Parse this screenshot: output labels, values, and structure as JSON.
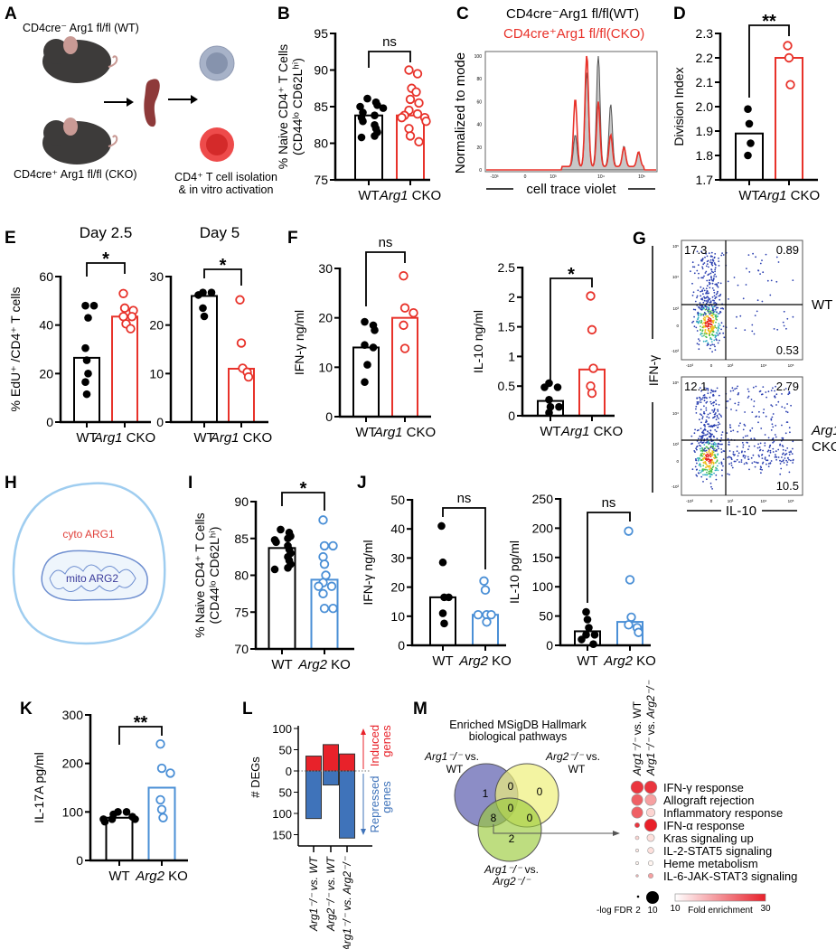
{
  "colors": {
    "wt": "#000000",
    "cko": "#e8322a",
    "ko2": "#4a8fd6",
    "gray": "#bdbdbd"
  },
  "panel_letters": [
    "A",
    "B",
    "C",
    "D",
    "E",
    "F",
    "G",
    "H",
    "I",
    "J",
    "K",
    "L",
    "M"
  ],
  "panel_a": {
    "wt_label": "CD4cre⁻ Arg1 fl/fl (WT)",
    "cko_label": "CD4cre⁺ Arg1 fl/fl (CKO)",
    "step_line1": "CD4⁺ T cell isolation",
    "step_line2": "& in vitro activation",
    "icons": [
      "mouse-wt",
      "mouse-cko",
      "spleen",
      "naive-t-cell",
      "activated-t-cell"
    ]
  },
  "panel_h": {
    "cyto_label": "cyto ARG1",
    "mito_label": "mito ARG2"
  },
  "chart_data": [
    {
      "id": "B",
      "type": "bar",
      "ylabel": [
        "% Naive CD4⁺ T Cells",
        "(CD44ˡᵒ CD62Lʰⁱ)"
      ],
      "ylim": [
        75,
        95
      ],
      "yticks": [
        "75",
        "80",
        "85",
        "90",
        "95"
      ],
      "categories": [
        "WT",
        "Arg1 CKO"
      ],
      "significance": "ns",
      "series": [
        {
          "name": "WT",
          "bar": 83.8,
          "points": [
            86.1,
            85.6,
            85.2,
            85.0,
            84.8,
            84.2,
            83.8,
            83.5,
            83.0,
            82.5,
            82.0,
            81.5,
            81.0,
            80.8
          ],
          "filled": true,
          "color": "wt"
        },
        {
          "name": "Arg1 CKO",
          "bar": 83.8,
          "points": [
            90.0,
            89.5,
            87.5,
            87.0,
            86.0,
            85.5,
            84.5,
            84.0,
            83.8,
            83.5,
            83.5,
            83.0,
            82.0,
            81.0,
            80.2
          ],
          "filled": false,
          "color": "cko"
        }
      ]
    },
    {
      "id": "C",
      "type": "area",
      "title_wt": "CD4cre⁻Arg1 fl/fl(WT)",
      "title_cko": "CD4cre⁺Arg1 fl/fl(CKO)",
      "ylabel": "Normalized to mode",
      "xlabel": "cell trace violet",
      "yticks": [
        "0",
        "20",
        "40",
        "60",
        "80",
        "100"
      ],
      "xticks": [
        "-10³",
        "0",
        "10³",
        "10⁴",
        "10⁵"
      ],
      "series": [
        {
          "name": "WT",
          "peaks": [
            [
              3.5,
              28
            ],
            [
              3.76,
              83
            ],
            [
              4.02,
              100
            ],
            [
              4.3,
              55
            ],
            [
              4.6,
              18
            ],
            [
              4.93,
              12
            ]
          ]
        },
        {
          "name": "CKO",
          "peaks": [
            [
              3.5,
              60
            ],
            [
              3.76,
              100
            ],
            [
              4.02,
              57
            ],
            [
              4.3,
              28
            ],
            [
              4.6,
              17
            ],
            [
              4.93,
              13
            ]
          ]
        }
      ]
    },
    {
      "id": "D",
      "type": "bar",
      "ylabel": [
        "Division Index"
      ],
      "ylim": [
        1.7,
        2.3
      ],
      "yticks": [
        "1.7",
        "1.8",
        "1.9",
        "2.0",
        "2.1",
        "2.2",
        "2.3"
      ],
      "categories": [
        "WT",
        "Arg1 CKO"
      ],
      "significance": "**",
      "series": [
        {
          "name": "WT",
          "bar": 1.89,
          "points": [
            1.99,
            1.93,
            1.85,
            1.8
          ],
          "filled": true,
          "color": "wt"
        },
        {
          "name": "Arg1 CKO",
          "bar": 2.2,
          "points": [
            2.25,
            2.2,
            2.09
          ],
          "filled": false,
          "color": "cko"
        }
      ]
    },
    {
      "id": "E1",
      "type": "bar",
      "title": "Day 2.5",
      "ylabel": [
        "% EdU⁺ /CD4⁺ T cells"
      ],
      "ylim": [
        0,
        60
      ],
      "yticks": [
        "0",
        "20",
        "40",
        "60"
      ],
      "categories": [
        "WT",
        "Arg1 CKO"
      ],
      "significance": "*",
      "series": [
        {
          "name": "WT",
          "bar": 26.5,
          "points": [
            48,
            48,
            43,
            30.5,
            25.5,
            20,
            16.5,
            11.5
          ],
          "filled": true,
          "color": "wt"
        },
        {
          "name": "Arg1 CKO",
          "bar": 43.5,
          "points": [
            53,
            47,
            46,
            43.5,
            43.5,
            40.5,
            38.5
          ],
          "filled": false,
          "color": "cko"
        }
      ]
    },
    {
      "id": "E2",
      "type": "bar",
      "title": "Day 5",
      "ylabel": [],
      "ylim": [
        0,
        30
      ],
      "yticks": [
        "0",
        "10",
        "20",
        "30"
      ],
      "categories": [
        "WT",
        "Arg1 CKO"
      ],
      "significance": "*",
      "series": [
        {
          "name": "WT",
          "bar": 26,
          "points": [
            26.7,
            26.7,
            26.2,
            23.5,
            21.8
          ],
          "filled": true,
          "color": "wt"
        },
        {
          "name": "Arg1 CKO",
          "bar": 11,
          "points": [
            25.2,
            16.3,
            11.1,
            10.3,
            9.3
          ],
          "filled": false,
          "color": "cko"
        }
      ]
    },
    {
      "id": "F1",
      "type": "bar",
      "ylabel": [
        "IFN-γ ng/ml"
      ],
      "ylim": [
        0,
        30
      ],
      "yticks": [
        "0",
        "10",
        "20",
        "30"
      ],
      "categories": [
        "WT",
        "Arg1 CKO"
      ],
      "significance": "ns",
      "series": [
        {
          "name": "WT",
          "bar": 14,
          "points": [
            19.2,
            18.5,
            17.5,
            14.5,
            14.0,
            10.5,
            7.0
          ],
          "filled": true,
          "color": "wt"
        },
        {
          "name": "Arg1 CKO",
          "bar": 20,
          "points": [
            28.5,
            22,
            21,
            18.5,
            13.8
          ],
          "filled": false,
          "color": "cko"
        }
      ]
    },
    {
      "id": "F2",
      "type": "bar",
      "ylabel": [
        "IL-10 ng/ml"
      ],
      "ylim": [
        0,
        2.5
      ],
      "yticks": [
        "0",
        "0.5",
        "1",
        "1.5",
        "2",
        "2.5"
      ],
      "categories": [
        "WT",
        "Arg1 CKO"
      ],
      "significance": "*",
      "series": [
        {
          "name": "WT",
          "bar": 0.25,
          "points": [
            0.55,
            0.48,
            0.48,
            0.27,
            0.15,
            0.15,
            0.05
          ],
          "filled": true,
          "color": "wt"
        },
        {
          "name": "Arg1 CKO",
          "bar": 0.78,
          "points": [
            2.02,
            1.45,
            0.8,
            0.5,
            0.38
          ],
          "filled": false,
          "color": "cko"
        }
      ]
    },
    {
      "id": "G",
      "type": "scatter",
      "ylabel": "IFN-γ",
      "xlabel": "IL-10",
      "yticks": [
        "-10³",
        "0",
        "10³",
        "10⁴",
        "10⁵"
      ],
      "xticks": [
        "-10³",
        "0",
        "10³",
        "10⁴",
        "10⁵"
      ],
      "plots": [
        {
          "row_label": "WT",
          "quadrants": {
            "upper_left": "17.3",
            "upper_right": "0.89",
            "lower_right": "0.53"
          }
        },
        {
          "row_label": "Arg1 CKO",
          "quadrants": {
            "upper_left": "12.1",
            "upper_right": "2.79",
            "lower_right": "10.5"
          }
        }
      ]
    },
    {
      "id": "I",
      "type": "bar",
      "ylabel": [
        "% Naive CD4⁺ T Cells",
        "(CD44ˡᵒ CD62Lʰⁱ)"
      ],
      "ylim": [
        70,
        90
      ],
      "yticks": [
        "70",
        "75",
        "80",
        "85",
        "90"
      ],
      "categories": [
        "WT",
        "Arg2 KO"
      ],
      "significance": "*",
      "series": [
        {
          "name": "WT",
          "bar": 83.7,
          "points": [
            86.2,
            85.8,
            85.3,
            85.0,
            84.8,
            84.5,
            84.0,
            83.5,
            83.0,
            82.5,
            82.0,
            81.5,
            81.0,
            80.8
          ],
          "filled": true,
          "color": "wt"
        },
        {
          "name": "Arg2 KO",
          "bar": 79.4,
          "points": [
            87.5,
            84.0,
            84.0,
            82.5,
            81.5,
            80.0,
            79.0,
            78.5,
            78.5,
            77.5,
            75.5,
            75.5
          ],
          "filled": false,
          "color": "ko2"
        }
      ]
    },
    {
      "id": "J1",
      "type": "bar",
      "ylabel": [
        "IFN-γ  ng/ml"
      ],
      "ylim": [
        0,
        50
      ],
      "yticks": [
        "0",
        "10",
        "20",
        "30",
        "40",
        "50"
      ],
      "categories": [
        "WT",
        "Arg2 KO"
      ],
      "significance": "ns",
      "series": [
        {
          "name": "WT",
          "bar": 16.5,
          "points": [
            41,
            28.5,
            16.5,
            16.5,
            11,
            7.5
          ],
          "filled": true,
          "color": "wt"
        },
        {
          "name": "Arg2 KO",
          "bar": 10.5,
          "points": [
            22.1,
            19,
            10.5,
            10.5,
            10.5,
            8
          ],
          "filled": false,
          "color": "ko2"
        }
      ]
    },
    {
      "id": "J2",
      "type": "bar",
      "ylabel": [
        "IL-10 pg/ml"
      ],
      "ylim": [
        0,
        250
      ],
      "yticks": [
        "0",
        "50",
        "100",
        "150",
        "200",
        "250"
      ],
      "categories": [
        "WT",
        "Arg2 KO"
      ],
      "significance": "ns",
      "series": [
        {
          "name": "WT",
          "bar": 24,
          "points": [
            57,
            44,
            30,
            18,
            18,
            10,
            2
          ],
          "filled": true,
          "color": "wt"
        },
        {
          "name": "Arg2 KO",
          "bar": 40,
          "points": [
            195,
            112,
            48,
            35,
            30,
            22
          ],
          "filled": false,
          "color": "ko2"
        }
      ]
    },
    {
      "id": "K",
      "type": "bar",
      "ylabel": [
        "IL-17A pg/ml"
      ],
      "ylim": [
        0,
        300
      ],
      "yticks": [
        "0",
        "100",
        "200",
        "300"
      ],
      "categories": [
        "WT",
        "Arg2 KO"
      ],
      "significance": "**",
      "series": [
        {
          "name": "WT",
          "bar": 88,
          "points": [
            100,
            100,
            95,
            90,
            85,
            85,
            85,
            80
          ],
          "filled": true,
          "color": "wt"
        },
        {
          "name": "Arg2 KO",
          "bar": 150,
          "points": [
            240,
            190,
            180,
            125,
            105,
            88
          ],
          "filled": false,
          "color": "ko2"
        }
      ]
    },
    {
      "id": "L",
      "type": "bar",
      "ylabel": "# DEGs",
      "yticks_up": [
        "0",
        "50",
        "100"
      ],
      "yticks_down": [
        "50",
        "100",
        "150"
      ],
      "categories": [
        "Arg1⁻/⁻ vs. WT",
        "Arg2⁻/⁻ vs. WT",
        "Arg1⁻/⁻ vs. Arg2⁻/⁻"
      ],
      "induced": [
        35,
        62,
        40
      ],
      "repressed": [
        112,
        33,
        158
      ],
      "induced_label": [
        "Induced",
        "genes"
      ],
      "repressed_label": [
        "Repressed",
        "genes"
      ]
    },
    {
      "id": "M",
      "type": "table",
      "venn": {
        "title": [
          "Enriched MSigDB Hallmark",
          "biological pathways"
        ],
        "sets": [
          "Arg1⁻/⁻ vs. WT",
          "Arg2⁻/⁻ vs. WT",
          "Arg1⁻/⁻ vs. Arg2⁻/⁻"
        ],
        "counts": {
          "only_1": "1",
          "1_2": "0",
          "only_2": "0",
          "all": "0",
          "1_3": "8",
          "2_3": "0",
          "only_3": "2"
        }
      },
      "dotplot": {
        "columns": [
          "Arg1⁻/⁻ vs. WT",
          "Arg1⁻/⁻ vs. Arg2⁻/⁻"
        ],
        "rows": [
          {
            "pathway": "IFN-γ response",
            "neg_log_fdr": [
              10,
              10
            ],
            "fold_enrichment": [
              28,
              28
            ]
          },
          {
            "pathway": "Allograft rejection",
            "neg_log_fdr": [
              9,
              9
            ],
            "fold_enrichment": [
              24,
              18
            ]
          },
          {
            "pathway": "Inflammatory response",
            "neg_log_fdr": [
              9,
              7
            ],
            "fold_enrichment": [
              24,
              13
            ]
          },
          {
            "pathway": "IFN-α response",
            "neg_log_fdr": [
              4,
              10
            ],
            "fold_enrichment": [
              28,
              30
            ]
          },
          {
            "pathway": "Kras signaling up",
            "neg_log_fdr": [
              3,
              6
            ],
            "fold_enrichment": [
              13,
              12
            ]
          },
          {
            "pathway": "IL-2-STAT5 signaling",
            "neg_log_fdr": [
              2.5,
              5
            ],
            "fold_enrichment": [
              11,
              12
            ]
          },
          {
            "pathway": "Heme metabolism",
            "neg_log_fdr": [
              2.5,
              4
            ],
            "fold_enrichment": [
              10,
              10
            ]
          },
          {
            "pathway": "IL-6-JAK-STAT3 signaling",
            "neg_log_fdr": [
              2,
              4
            ],
            "fold_enrichment": [
              16,
              18
            ]
          }
        ],
        "size_legend": {
          "label": "-log FDR",
          "min": "2",
          "max": "10"
        },
        "color_legend": {
          "label": "Fold enrichment",
          "min": "10",
          "max": "30"
        }
      }
    }
  ]
}
